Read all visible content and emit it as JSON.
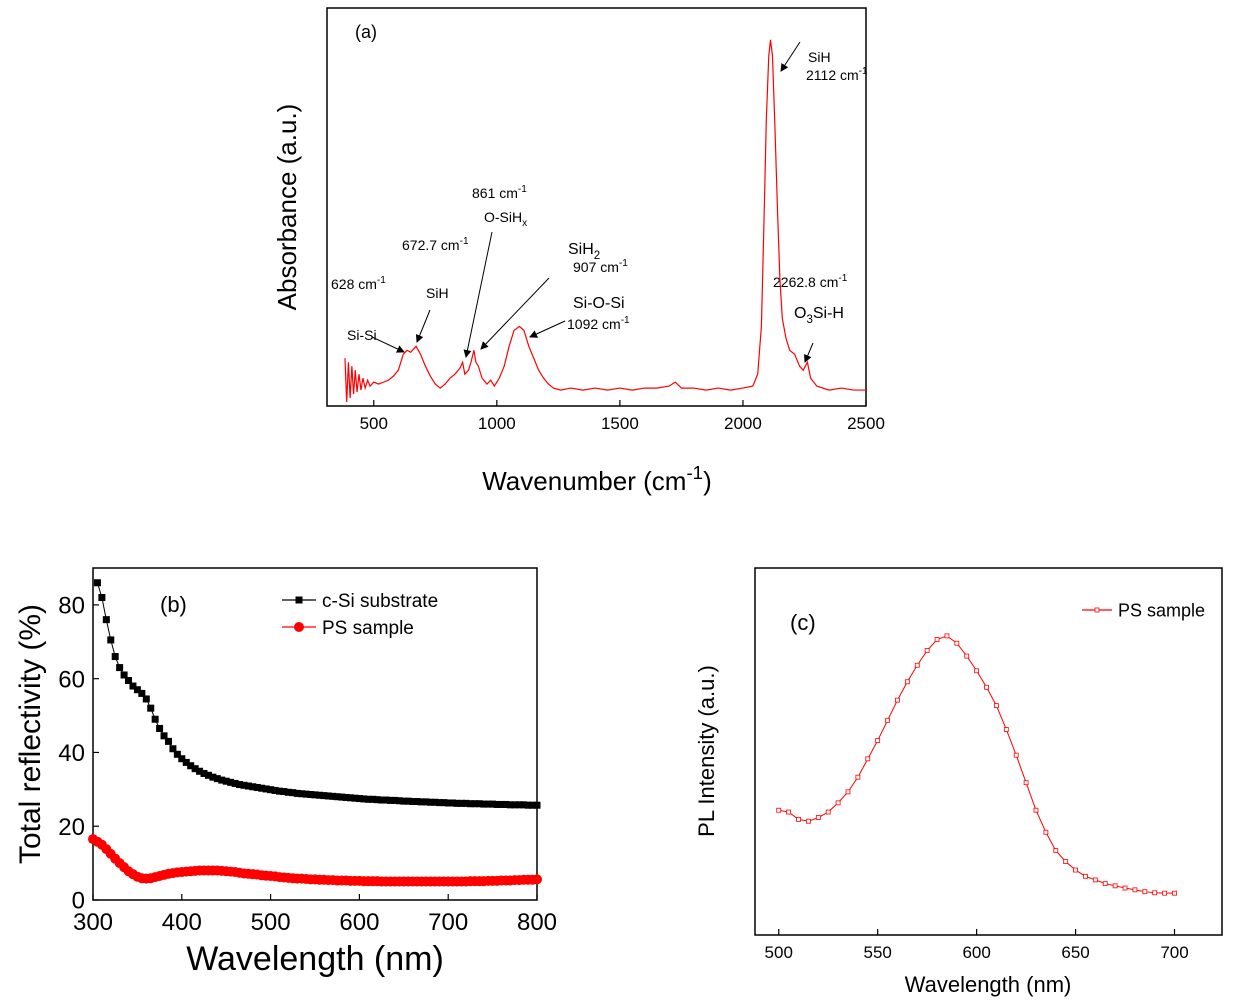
{
  "chart_data": [
    {
      "type": "line",
      "annotations": [
        [
          {
            "text": "(a)"
          }
        ],
        [
          {
            "text": "SiH"
          }
        ],
        [
          {
            "text": "2112 cm"
          },
          {
            "sup": "-1"
          }
        ],
        [
          {
            "text": "861 cm"
          },
          {
            "sup": "-1"
          }
        ],
        [
          {
            "text": "O-SiH"
          },
          {
            "sub": "x"
          }
        ],
        [
          {
            "text": "672.7 cm"
          },
          {
            "sup": "-1"
          }
        ],
        [
          {
            "text": "628 cm"
          },
          {
            "sup": "-1"
          }
        ],
        [
          {
            "text": "SiH"
          }
        ],
        [
          {
            "text": "Si-Si"
          }
        ],
        [
          {
            "text": "SiH"
          },
          {
            "sub": "2"
          }
        ],
        [
          {
            "text": "907 cm"
          },
          {
            "sup": "-1"
          }
        ],
        [
          {
            "text": "Si-O-Si"
          }
        ],
        [
          {
            "text": "1092 cm"
          },
          {
            "sup": "-1"
          }
        ],
        [
          {
            "text": "2262.8  cm"
          },
          {
            "sup": "-1"
          }
        ],
        [
          {
            "text": "O"
          },
          {
            "sub": "3"
          },
          {
            "text": "Si-H"
          }
        ]
      ],
      "x_label": [
        {
          "text": "Wavenumber (cm"
        },
        {
          "sup": "-1"
        },
        {
          "text": ")"
        }
      ],
      "y_label": "Absorbance (a.u.)",
      "x": [
        383,
        390,
        397,
        404,
        411,
        418,
        425,
        432,
        440,
        448,
        456,
        465,
        475,
        485,
        500,
        520,
        540,
        560,
        580,
        600,
        620,
        635,
        650,
        672,
        690,
        710,
        730,
        750,
        770,
        790,
        810,
        830,
        850,
        861,
        870,
        885,
        895,
        907,
        915,
        925,
        940,
        960,
        975,
        990,
        1010,
        1030,
        1050,
        1070,
        1092,
        1110,
        1130,
        1150,
        1170,
        1190,
        1210,
        1230,
        1260,
        1300,
        1350,
        1400,
        1450,
        1500,
        1550,
        1600,
        1650,
        1700,
        1725,
        1750,
        1800,
        1850,
        1900,
        1950,
        2000,
        2040,
        2060,
        2075,
        2085,
        2095,
        2105,
        2112,
        2120,
        2130,
        2140,
        2150,
        2160,
        2175,
        2190,
        2210,
        2230,
        2245,
        2262,
        2275,
        2300,
        2350,
        2400,
        2450,
        2500
      ],
      "values": [
        12,
        1,
        11,
        2,
        10,
        3,
        9,
        3.5,
        8,
        4,
        7,
        4.5,
        6.5,
        5,
        6,
        5.5,
        6,
        6.5,
        7.5,
        9,
        13,
        14,
        13.5,
        15,
        13,
        10,
        7.5,
        5.5,
        4.5,
        5.5,
        7,
        8,
        9.5,
        11,
        8,
        9,
        11,
        14,
        11,
        10,
        7,
        5.5,
        6.5,
        5,
        7,
        10,
        15,
        19,
        20,
        19,
        15,
        12,
        9,
        7,
        5.5,
        4.5,
        4,
        4.5,
        4,
        4.5,
        4,
        4.5,
        4,
        4.5,
        4.5,
        5,
        6,
        4.5,
        4.5,
        4,
        4.5,
        4,
        4.5,
        5,
        8,
        20,
        45,
        72,
        88,
        92,
        88,
        70,
        50,
        32,
        22,
        17,
        14,
        13,
        10,
        9,
        11,
        7,
        5,
        4,
        4.5,
        4,
        4
      ],
      "color": "#ff0000",
      "xlim": [
        310,
        2500
      ],
      "xticks": [
        500,
        1000,
        1500,
        2000,
        2500
      ],
      "ylim": [
        0,
        100
      ]
    },
    {
      "type": "line",
      "annotations": [
        [
          {
            "text": "(b)"
          }
        ]
      ],
      "x_label": "Wavelength (nm)",
      "y_label": "Total reflectivity (%)",
      "x": [
        300,
        305,
        310,
        315,
        320,
        325,
        330,
        335,
        340,
        345,
        350,
        355,
        360,
        365,
        370,
        375,
        380,
        385,
        390,
        395,
        400,
        405,
        410,
        415,
        420,
        425,
        430,
        435,
        440,
        445,
        450,
        455,
        460,
        465,
        470,
        475,
        480,
        485,
        490,
        495,
        500,
        505,
        510,
        515,
        520,
        525,
        530,
        535,
        540,
        545,
        550,
        555,
        560,
        565,
        570,
        575,
        580,
        585,
        590,
        595,
        600,
        605,
        610,
        615,
        620,
        625,
        630,
        635,
        640,
        645,
        650,
        655,
        660,
        665,
        670,
        675,
        680,
        685,
        690,
        695,
        700,
        705,
        710,
        715,
        720,
        725,
        730,
        735,
        740,
        745,
        750,
        755,
        760,
        765,
        770,
        775,
        780,
        785,
        790,
        795,
        800
      ],
      "series": [
        {
          "name": "c-Si substrate",
          "color": "#000000",
          "marker": "square",
          "values": [
            null,
            86,
            82,
            76,
            70.5,
            66,
            63,
            61,
            59.5,
            58,
            57,
            56,
            54.5,
            52,
            49,
            46.5,
            44.5,
            43,
            41,
            39.5,
            38.3,
            37.3,
            36.4,
            35.6,
            34.9,
            34.3,
            33.8,
            33.3,
            32.9,
            32.5,
            32.2,
            31.9,
            31.6,
            31.3,
            31.1,
            30.9,
            30.7,
            30.5,
            30.3,
            30.1,
            29.9,
            29.7,
            29.5,
            29.4,
            29.2,
            29.1,
            28.9,
            28.8,
            28.7,
            28.6,
            28.5,
            28.4,
            28.3,
            28.2,
            28.1,
            28,
            27.9,
            27.8,
            27.7,
            27.6,
            27.5,
            27.4,
            27.3,
            27.3,
            27.2,
            27.1,
            27.1,
            27,
            27,
            26.9,
            26.8,
            26.8,
            26.7,
            26.7,
            26.6,
            26.6,
            26.5,
            26.5,
            26.4,
            26.4,
            26.3,
            26.3,
            26.2,
            26.2,
            26.2,
            26.1,
            26.1,
            26.1,
            26,
            26,
            26,
            25.9,
            25.9,
            25.9,
            25.8,
            25.8,
            25.8,
            25.8,
            25.7,
            25.7,
            25.7
          ]
        },
        {
          "name": "PS sample",
          "color": "#ff0000",
          "marker": "circle",
          "values": [
            16.5,
            15.8,
            15,
            13.8,
            12.5,
            11.2,
            10,
            8.9,
            7.8,
            7,
            6.3,
            5.9,
            5.8,
            5.9,
            6.2,
            6.5,
            6.8,
            7.1,
            7.3,
            7.5,
            7.6,
            7.7,
            7.8,
            7.9,
            8,
            8,
            8,
            8,
            8,
            7.9,
            7.8,
            7.7,
            7.6,
            7.4,
            7.2,
            7.1,
            7,
            6.9,
            6.7,
            6.6,
            6.5,
            6.4,
            6.2,
            6.1,
            6,
            5.9,
            5.8,
            5.8,
            5.7,
            5.6,
            5.6,
            5.5,
            5.5,
            5.4,
            5.4,
            5.3,
            5.3,
            5.3,
            5.2,
            5.2,
            5.2,
            5.1,
            5.1,
            5.1,
            5.1,
            5,
            5,
            5,
            5,
            5,
            5,
            5,
            5,
            5,
            5,
            5,
            5,
            5,
            5,
            5,
            5,
            5,
            5,
            5,
            5,
            5.1,
            5.1,
            5.1,
            5.1,
            5.2,
            5.2,
            5.2,
            5.3,
            5.3,
            5.3,
            5.4,
            5.4,
            5.5,
            5.5,
            5.5,
            5.6
          ]
        }
      ],
      "xlim": [
        300,
        800
      ],
      "xticks": [
        300,
        400,
        500,
        600,
        700,
        800
      ],
      "ylim": [
        0,
        90
      ],
      "yticks": [
        0,
        20,
        40,
        60,
        80
      ],
      "legend": "upper right"
    },
    {
      "type": "line",
      "annotations": [
        [
          {
            "text": "(c)"
          }
        ]
      ],
      "x_label": "Wavelength (nm)",
      "y_label": "PL Intensity (a.u.)",
      "x": [
        500,
        505,
        510,
        515,
        520,
        525,
        530,
        535,
        540,
        545,
        550,
        555,
        560,
        565,
        570,
        575,
        580,
        585,
        590,
        595,
        600,
        605,
        610,
        615,
        620,
        625,
        630,
        635,
        640,
        645,
        650,
        655,
        660,
        665,
        670,
        675,
        680,
        685,
        690,
        695,
        700
      ],
      "series": [
        {
          "name": "PS sample",
          "color": "#ff0000",
          "marker": "open-square",
          "values": [
            34,
            33.5,
            31.5,
            31,
            32,
            33.5,
            36,
            39,
            43,
            48,
            53,
            58.5,
            64,
            69,
            73.5,
            77.5,
            80.5,
            81.5,
            79.5,
            76,
            72,
            67.5,
            62.5,
            56,
            49,
            41.5,
            34,
            28,
            23,
            20,
            17.7,
            16,
            15,
            14,
            13.4,
            12.8,
            12.3,
            11.8,
            11.5,
            11.4,
            11.4
          ]
        }
      ],
      "xlim": [
        488,
        724
      ],
      "xticks": [
        500,
        550,
        600,
        650,
        700
      ],
      "ylim": [
        0,
        100
      ],
      "legend": "upper right"
    }
  ]
}
